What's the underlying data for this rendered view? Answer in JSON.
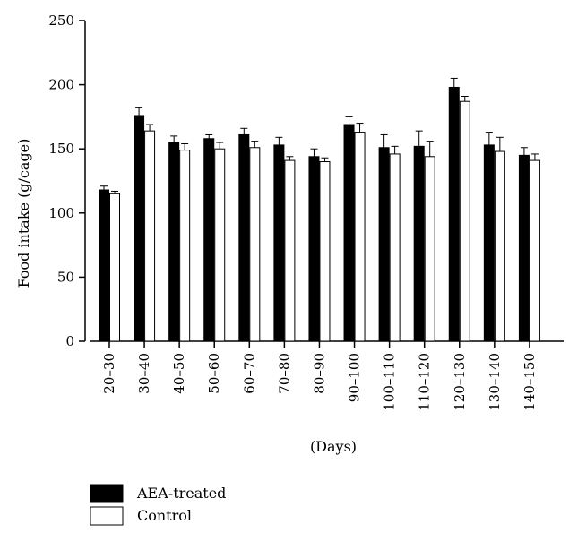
{
  "chart_data": {
    "type": "bar",
    "categories": [
      "20–30",
      "30–40",
      "40–50",
      "50–60",
      "60–70",
      "70–80",
      "80–90",
      "90–100",
      "100–110",
      "110–120",
      "120–130",
      "130–140",
      "140–150"
    ],
    "series": [
      {
        "name": "AEA-treated",
        "color": "#000000",
        "values": [
          118,
          176,
          155,
          158,
          161,
          153,
          144,
          169,
          151,
          152,
          198,
          153,
          145
        ],
        "errors": [
          3,
          6,
          5,
          3,
          5,
          6,
          6,
          6,
          10,
          12,
          7,
          10,
          6
        ]
      },
      {
        "name": "Control",
        "color": "#ffffff",
        "values": [
          115,
          164,
          149,
          150,
          151,
          141,
          140,
          163,
          146,
          144,
          187,
          148,
          141
        ],
        "errors": [
          2,
          5,
          5,
          5,
          5,
          3,
          3,
          7,
          6,
          12,
          4,
          11,
          5
        ]
      }
    ],
    "title": "",
    "xlabel": "(Days)",
    "ylabel": "Food intake (g/cage)",
    "ylim": [
      0,
      250
    ],
    "yticks": [
      0,
      50,
      100,
      150,
      200,
      250
    ],
    "grid": false,
    "legend_position": "bottom-left"
  }
}
